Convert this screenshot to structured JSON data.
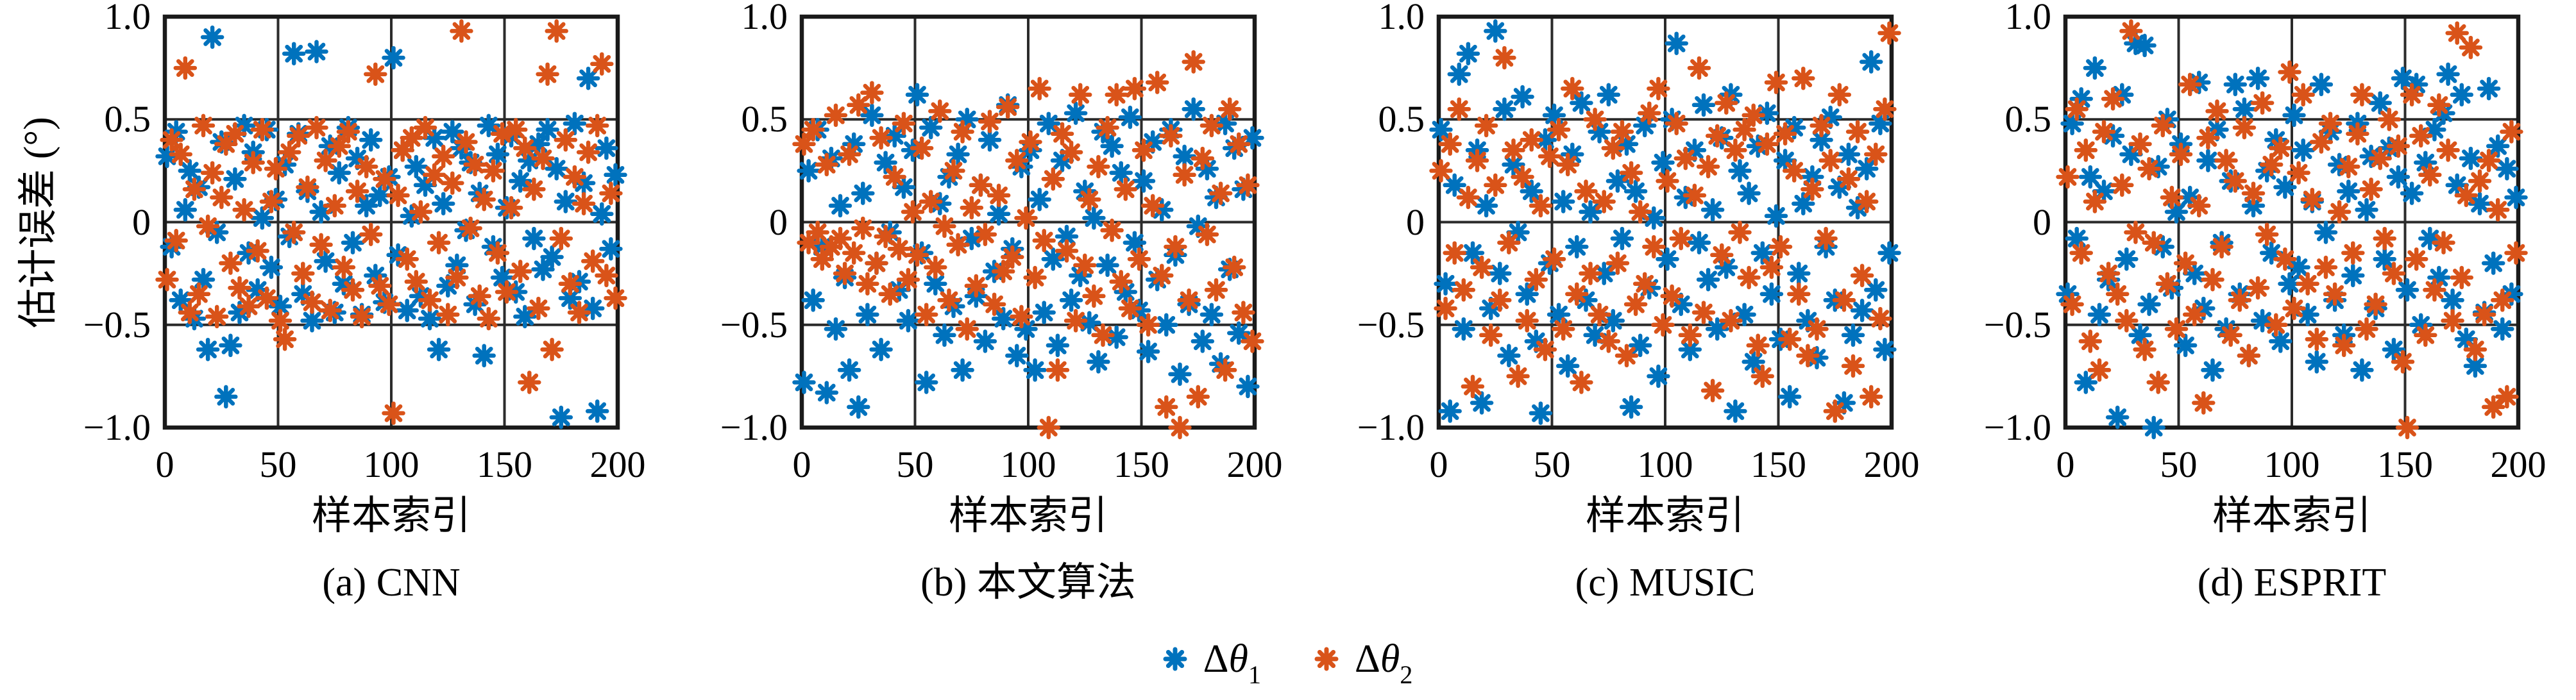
{
  "figure": {
    "ylabel": "估计误差 (°)",
    "background": "#ffffff",
    "axis_color": "#1a1a1a",
    "grid_color": "#2b2b2b",
    "marker_shape": "asterisk-8-spoke"
  },
  "legend": {
    "items": [
      {
        "prefix": "Δ",
        "symbol": "θ",
        "sub": "1",
        "label": "Δθ1",
        "color": "#0072BD"
      },
      {
        "prefix": "Δ",
        "symbol": "θ",
        "sub": "2",
        "label": "Δθ2",
        "color": "#D95319"
      }
    ]
  },
  "chart_data": [
    {
      "id": "a",
      "type": "scatter",
      "caption": "(a) CNN",
      "xlabel": "样本索引",
      "ylabel": "估计误差 (°)",
      "xlim": [
        0,
        200
      ],
      "ylim": [
        -1,
        1
      ],
      "grid": true,
      "x_encoding": "sample index 1–200, points evenly spaced by array index",
      "xticks": {
        "values": [
          0,
          50,
          100,
          150,
          200
        ],
        "labels": [
          "0",
          "50",
          "100",
          "150",
          "200"
        ]
      },
      "yticks": {
        "values": [
          1,
          0.5,
          0,
          -0.5,
          -1
        ],
        "labels": [
          "1.0",
          "0.5",
          "0",
          "−0.5",
          "−1.0"
        ]
      },
      "series": [
        {
          "name": "Δθ1",
          "color": "#0072BD",
          "y": [
            0.32,
            -0.12,
            0.44,
            -0.38,
            0.06,
            0.25,
            -0.47,
            0.17,
            -0.28,
            -0.62,
            0.9,
            -0.05,
            0.39,
            -0.85,
            -0.6,
            0.21,
            -0.44,
            0.47,
            -0.15,
            0.34,
            -0.33,
            0.02,
            0.45,
            -0.22,
            0.11,
            -0.41,
            0.28,
            -0.07,
            0.82,
            0.43,
            -0.35,
            0.15,
            -0.48,
            0.83,
            0.05,
            -0.19,
            0.37,
            -0.44,
            0.24,
            -0.3,
            0.46,
            -0.1,
            0.31,
            -0.45,
            0.08,
            0.4,
            -0.26,
            0.13,
            -0.39,
            0.22,
            0.8,
            -0.16,
            0.35,
            -0.43,
            0.03,
            0.27,
            -0.36,
            0.18,
            -0.47,
            0.41,
            -0.62,
            0.09,
            -0.31,
            0.44,
            -0.21,
            0.36,
            -0.04,
            0.29,
            -0.4,
            0.14,
            -0.65,
            0.47,
            -0.12,
            0.33,
            -0.27,
            0.07,
            0.42,
            -0.34,
            0.2,
            -0.46,
            0.3,
            -0.08,
            0.38,
            -0.23,
            0.45,
            -0.17,
            0.26,
            -0.95,
            0.1,
            -0.37,
            0.48,
            -0.29,
            0.19,
            0.7,
            -0.42,
            -0.92,
            0.04,
            0.36,
            -0.13,
            0.23
          ]
        },
        {
          "name": "Δθ2",
          "color": "#D95319",
          "y": [
            -0.28,
            0.4,
            -0.09,
            0.33,
            0.75,
            -0.44,
            0.16,
            -0.35,
            0.47,
            -0.02,
            0.24,
            -0.46,
            0.12,
            0.38,
            -0.2,
            0.43,
            -0.32,
            0.06,
            -0.41,
            0.29,
            -0.14,
            0.45,
            -0.37,
            0.1,
            0.26,
            -0.48,
            -0.57,
            0.34,
            -0.05,
            0.42,
            -0.25,
            0.17,
            -0.39,
            0.46,
            -0.11,
            0.3,
            -0.43,
            0.08,
            0.37,
            -0.22,
            0.44,
            -0.33,
            0.15,
            -0.46,
            0.27,
            -0.06,
            0.72,
            -0.31,
            0.21,
            -0.4,
            -0.93,
            0.13,
            0.35,
            -0.18,
            0.41,
            -0.29,
            0.05,
            0.46,
            -0.38,
            0.23,
            -0.1,
            0.32,
            -0.45,
            0.19,
            -0.27,
            0.93,
            0.39,
            -0.03,
            0.28,
            -0.36,
            0.11,
            -0.47,
            0.25,
            -0.15,
            0.43,
            -0.34,
            0.07,
            0.45,
            -0.24,
            0.36,
            -0.78,
            0.16,
            -0.42,
            0.31,
            0.72,
            -0.62,
            0.93,
            -0.08,
            0.4,
            -0.3,
            0.22,
            -0.44,
            0.09,
            0.34,
            -0.19,
            0.47,
            0.77,
            -0.26,
            0.14,
            -0.37
          ]
        }
      ]
    },
    {
      "id": "b",
      "type": "scatter",
      "caption": "(b) 本文算法",
      "xlabel": "样本索引",
      "ylabel": "估计误差 (°)",
      "xlim": [
        0,
        200
      ],
      "ylim": [
        -1,
        1
      ],
      "grid": true,
      "x_encoding": "sample index 1–200, points evenly spaced by array index",
      "xticks": {
        "values": [
          0,
          50,
          100,
          150,
          200
        ],
        "labels": [
          "0",
          "50",
          "100",
          "150",
          "200"
        ]
      },
      "yticks": {
        "values": [
          1,
          0.5,
          0,
          -0.5,
          -1
        ],
        "labels": [
          "1.0",
          "0.5",
          "0",
          "−0.5",
          "−1.0"
        ]
      },
      "series": [
        {
          "name": "Δθ1",
          "color": "#0072BD",
          "y": [
            -0.78,
            0.25,
            -0.38,
            0.45,
            -0.12,
            -0.83,
            0.31,
            -0.52,
            0.08,
            -0.27,
            -0.72,
            0.38,
            -0.9,
            0.14,
            -0.45,
            0.52,
            -0.2,
            -0.62,
            0.29,
            -0.05,
            0.42,
            -0.33,
            0.17,
            -0.48,
            0.35,
            0.62,
            -0.15,
            -0.78,
            0.46,
            -0.3,
            0.09,
            -0.55,
            0.22,
            -0.41,
            0.33,
            -0.72,
            0.5,
            -0.08,
            -0.36,
            0.18,
            -0.58,
            0.4,
            -0.24,
            0.04,
            -0.47,
            0.57,
            -0.13,
            -0.65,
            0.27,
            -0.52,
            0.35,
            -0.72,
            0.11,
            -0.44,
            0.48,
            -0.18,
            -0.6,
            0.3,
            -0.07,
            -0.38,
            0.53,
            -0.26,
            0.15,
            -0.49,
            0.02,
            -0.68,
            0.44,
            -0.21,
            0.37,
            -0.56,
            0.24,
            -0.34,
            0.51,
            -0.1,
            -0.43,
            0.2,
            -0.63,
            0.39,
            -0.28,
            0.06,
            -0.5,
            0.45,
            -0.16,
            -0.74,
            0.32,
            -0.4,
            0.55,
            -0.02,
            -0.58,
            0.26,
            -0.45,
            0.12,
            -0.69,
            0.48,
            -0.23,
            0.36,
            -0.54,
            0.16,
            -0.8,
            0.41
          ]
        },
        {
          "name": "Δθ2",
          "color": "#D95319",
          "y": [
            0.38,
            -0.1,
            0.45,
            -0.05,
            -0.18,
            0.28,
            -0.12,
            0.52,
            -0.08,
            -0.25,
            0.33,
            -0.15,
            0.57,
            -0.03,
            -0.3,
            0.63,
            -0.2,
            0.41,
            -0.07,
            -0.35,
            0.22,
            -0.13,
            0.48,
            -0.28,
            0.05,
            -0.16,
            0.36,
            -0.45,
            0.1,
            -0.22,
            0.54,
            -0.02,
            -0.38,
            0.25,
            -0.11,
            0.44,
            -0.52,
            0.07,
            -0.31,
            0.18,
            -0.06,
            0.49,
            -0.4,
            0.13,
            -0.24,
            0.56,
            -0.17,
            0.3,
            -0.46,
            0.02,
            0.39,
            -0.27,
            0.65,
            -0.09,
            -1.0,
            0.21,
            -0.72,
            0.43,
            -0.14,
            0.34,
            -0.48,
            0.62,
            -0.21,
            0.11,
            -0.36,
            0.27,
            -0.55,
            0.46,
            -0.04,
            0.62,
            -0.29,
            0.16,
            -0.42,
            0.65,
            -0.18,
            0.35,
            -0.5,
            0.08,
            0.68,
            -0.26,
            -0.9,
            0.42,
            -0.12,
            -1.0,
            0.23,
            -0.38,
            0.78,
            -0.85,
            0.31,
            -0.06,
            0.47,
            -0.33,
            0.14,
            -0.72,
            0.55,
            -0.22,
            0.38,
            -0.44,
            0.18,
            -0.58
          ]
        }
      ]
    },
    {
      "id": "c",
      "type": "scatter",
      "caption": "(c) MUSIC",
      "xlabel": "样本索引",
      "ylabel": "估计误差 (°)",
      "xlim": [
        0,
        200
      ],
      "ylim": [
        -1,
        1
      ],
      "grid": true,
      "x_encoding": "sample index 1–200, points evenly spaced by array index",
      "xticks": {
        "values": [
          0,
          50,
          100,
          150,
          200
        ],
        "labels": [
          "0",
          "50",
          "100",
          "150",
          "200"
        ]
      },
      "yticks": {
        "values": [
          1,
          0.5,
          0,
          -0.5,
          -1
        ],
        "labels": [
          "1.0",
          "0.5",
          "0",
          "−0.5",
          "−1.0"
        ]
      },
      "series": [
        {
          "name": "Δθ1",
          "color": "#0072BD",
          "y": [
            0.45,
            -0.3,
            -0.92,
            0.18,
            0.72,
            -0.52,
            0.82,
            -0.15,
            0.35,
            -0.88,
            0.08,
            -0.42,
            0.93,
            -0.25,
            0.55,
            -0.65,
            0.28,
            -0.05,
            0.61,
            -0.35,
            0.15,
            -0.58,
            -0.93,
            0.4,
            -0.2,
            0.52,
            -0.45,
            0.1,
            -0.7,
            0.33,
            -0.12,
            0.58,
            -0.38,
            0.05,
            -0.55,
            0.44,
            -0.25,
            0.62,
            -0.48,
            0.2,
            -0.08,
            0.38,
            -0.9,
            0.15,
            -0.6,
            0.47,
            -0.32,
            0.02,
            -0.75,
            0.29,
            -0.18,
            0.5,
            0.87,
            -0.4,
            0.12,
            -0.62,
            0.35,
            -0.1,
            0.57,
            -0.28,
            0.06,
            -0.52,
            0.41,
            -0.22,
            0.62,
            -0.92,
            0.25,
            -0.45,
            0.14,
            -0.68,
            0.37,
            -0.15,
            0.53,
            -0.35,
            0.03,
            -0.57,
            0.3,
            -0.85,
            0.46,
            -0.25,
            0.09,
            -0.48,
            0.22,
            -0.66,
            0.4,
            -0.12,
            0.51,
            -0.38,
            0.17,
            -0.88,
            0.33,
            -0.55,
            0.07,
            -0.43,
            0.26,
            0.78,
            -0.33,
            0.48,
            -0.62,
            -0.15
          ]
        },
        {
          "name": "Δθ2",
          "color": "#D95319",
          "y": [
            0.25,
            -0.42,
            0.38,
            -0.15,
            0.55,
            -0.33,
            0.12,
            -0.8,
            0.3,
            -0.22,
            0.47,
            -0.55,
            0.18,
            -0.38,
            0.8,
            -0.1,
            0.35,
            -0.75,
            0.22,
            -0.48,
            0.4,
            -0.28,
            0.08,
            -0.62,
            0.32,
            -0.18,
            0.45,
            -0.52,
            0.28,
            0.65,
            -0.35,
            -0.78,
            0.15,
            -0.25,
            0.5,
            -0.45,
            0.1,
            -0.58,
            0.36,
            -0.2,
            0.44,
            -0.65,
            0.24,
            -0.4,
            0.05,
            -0.3,
            0.53,
            -0.12,
            0.65,
            -0.5,
            0.2,
            -0.36,
            0.48,
            -0.08,
            0.31,
            -0.55,
            0.13,
            0.75,
            -0.44,
            0.27,
            -0.82,
            0.42,
            -0.16,
            0.58,
            -0.48,
            0.35,
            -0.05,
            0.45,
            -0.27,
            0.52,
            -0.6,
            -0.75,
            0.38,
            -0.22,
            0.68,
            -0.12,
            0.43,
            -0.57,
            0.25,
            -0.35,
            0.7,
            -0.65,
            0.16,
            -0.52,
            0.47,
            -0.08,
            0.3,
            -0.92,
            0.62,
            -0.38,
            0.21,
            -0.7,
            0.44,
            -0.26,
            0.1,
            -0.85,
            0.33,
            -0.47,
            0.55,
            0.92
          ]
        }
      ]
    },
    {
      "id": "d",
      "type": "scatter",
      "caption": "(d) ESPRIT",
      "xlabel": "样本索引",
      "ylabel": "估计误差 (°)",
      "xlim": [
        0,
        200
      ],
      "ylim": [
        -1,
        1
      ],
      "grid": true,
      "x_encoding": "sample index 1–200, points evenly spaced by array index",
      "xticks": {
        "values": [
          0,
          50,
          100,
          150,
          200
        ],
        "labels": [
          "0",
          "50",
          "100",
          "150",
          "200"
        ]
      },
      "yticks": {
        "values": [
          1,
          0.5,
          0,
          -0.5,
          -1
        ],
        "labels": [
          "1.0",
          "0.5",
          "0",
          "−0.5",
          "−1.0"
        ]
      },
      "series": [
        {
          "name": "Δθ1",
          "color": "#0072BD",
          "y": [
            -0.35,
            0.48,
            -0.08,
            0.6,
            -0.78,
            0.22,
            0.75,
            -0.45,
            0.15,
            -0.28,
            0.42,
            -0.95,
            0.62,
            -0.18,
            0.33,
            0.87,
            -0.55,
            0.86,
            -0.4,
            -1.0,
            0.27,
            -0.12,
            0.5,
            -0.32,
            0.05,
            0.38,
            -0.6,
            0.12,
            -0.25,
            0.68,
            -0.42,
            0.3,
            -0.72,
            0.45,
            -0.1,
            -0.52,
            0.2,
            0.67,
            -0.35,
            0.55,
            -0.65,
            0.08,
            0.7,
            -0.48,
            0.25,
            -0.15,
            0.4,
            -0.58,
            0.17,
            -0.3,
            0.52,
            -0.22,
            0.35,
            -0.45,
            0.1,
            -0.68,
            0.67,
            -0.05,
            0.44,
            -0.38,
            0.28,
            -0.55,
            0.15,
            -0.26,
            0.48,
            -0.72,
            0.06,
            0.32,
            -0.42,
            0.58,
            -0.18,
            0.36,
            -0.62,
            0.22,
            0.7,
            -0.33,
            0.14,
            0.67,
            -0.5,
            0.29,
            -0.08,
            0.45,
            -0.27,
            0.53,
            0.72,
            -0.38,
            0.18,
            0.62,
            -0.57,
            0.31,
            -0.7,
            0.09,
            -0.44,
            0.65,
            -0.2,
            0.37,
            -0.52,
            0.26,
            -0.35,
            0.12
          ]
        },
        {
          "name": "Δθ2",
          "color": "#D95319",
          "y": [
            0.22,
            -0.4,
            0.55,
            -0.15,
            0.35,
            -0.58,
            0.1,
            -0.72,
            0.44,
            -0.25,
            0.6,
            -0.35,
            0.18,
            -0.48,
            0.93,
            -0.05,
            0.38,
            -0.62,
            0.26,
            -0.1,
            -0.78,
            0.47,
            -0.3,
            0.12,
            -0.52,
            0.33,
            -0.2,
            0.67,
            -0.45,
            0.08,
            -0.88,
            0.41,
            -0.28,
            0.54,
            -0.12,
            0.3,
            -0.55,
            0.2,
            -0.38,
            0.46,
            -0.65,
            0.14,
            -0.32,
            0.58,
            -0.06,
            0.28,
            -0.5,
            0.36,
            -0.18,
            0.73,
            -0.42,
            0.24,
            0.62,
            -0.3,
            0.11,
            -0.57,
            0.39,
            -0.22,
            0.48,
            -0.35,
            0.05,
            -0.6,
            0.27,
            -0.15,
            0.43,
            0.62,
            -0.52,
            0.16,
            -0.4,
            0.31,
            -0.08,
            0.5,
            -0.25,
            0.37,
            -0.68,
            -1.0,
            0.62,
            -0.18,
            0.42,
            -0.55,
            0.23,
            -0.33,
            0.57,
            -0.1,
            0.35,
            -0.48,
            0.92,
            -0.27,
            0.13,
            0.85,
            -0.62,
            0.2,
            -0.45,
            0.3,
            -0.9,
            0.06,
            -0.38,
            -0.85,
            0.44,
            -0.15
          ]
        }
      ]
    }
  ]
}
